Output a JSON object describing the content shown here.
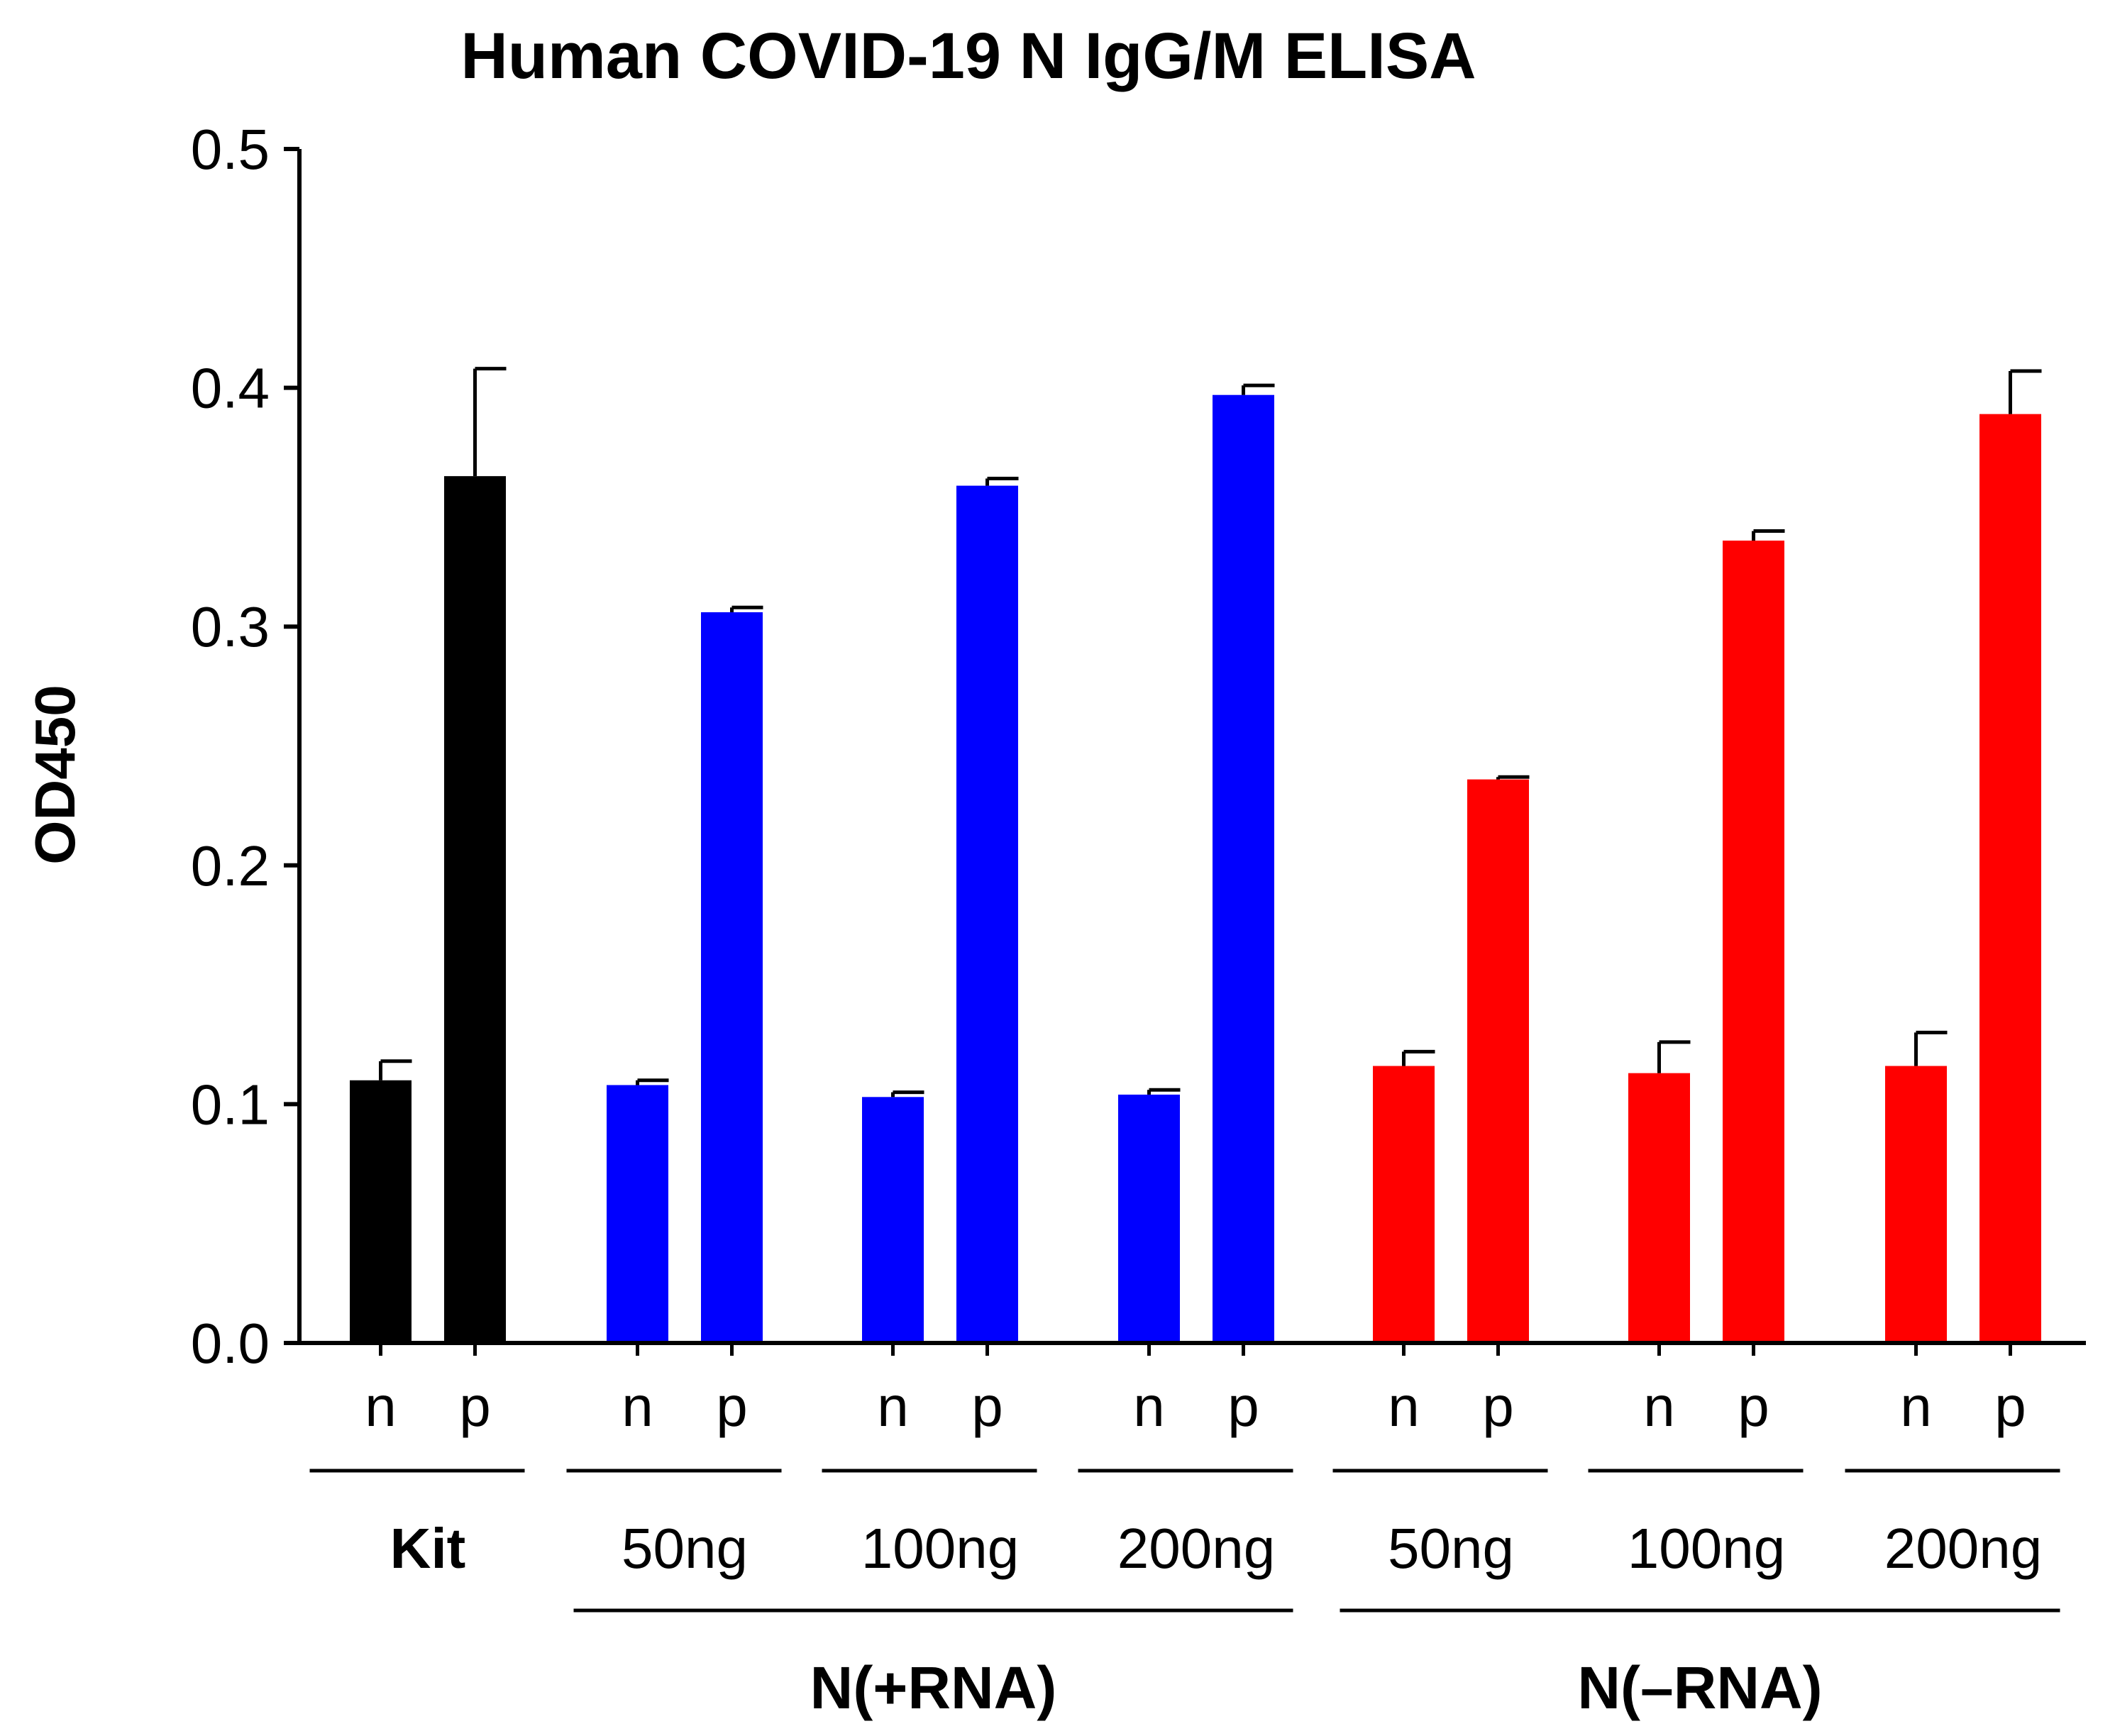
{
  "chart_data": {
    "type": "bar",
    "title": "Human COVID-19 N IgG/M ELISA",
    "ylabel": "OD450",
    "ylim": [
      0,
      0.5
    ],
    "yticks": [
      "0.0",
      "0.1",
      "0.2",
      "0.3",
      "0.4",
      "0.5"
    ],
    "bars": [
      {
        "label": "n",
        "group": "Kit",
        "value": 0.11,
        "error": 0.008,
        "color": "#000000"
      },
      {
        "label": "p",
        "group": "Kit",
        "value": 0.363,
        "error": 0.045,
        "color": "#000000"
      },
      {
        "label": "n",
        "group": "50ng",
        "value": 0.108,
        "error": 0.002,
        "color": "#0000FF"
      },
      {
        "label": "p",
        "group": "50ng",
        "value": 0.306,
        "error": 0.002,
        "color": "#0000FF"
      },
      {
        "label": "n",
        "group": "100ng",
        "value": 0.103,
        "error": 0.002,
        "color": "#0000FF"
      },
      {
        "label": "p",
        "group": "100ng",
        "value": 0.359,
        "error": 0.003,
        "color": "#0000FF"
      },
      {
        "label": "n",
        "group": "200ng",
        "value": 0.104,
        "error": 0.002,
        "color": "#0000FF"
      },
      {
        "label": "p",
        "group": "200ng",
        "value": 0.397,
        "error": 0.004,
        "color": "#0000FF"
      },
      {
        "label": "n",
        "group": "50ng",
        "value": 0.116,
        "error": 0.006,
        "color": "#FF0000"
      },
      {
        "label": "p",
        "group": "50ng",
        "value": 0.236,
        "error": 0.001,
        "color": "#FF0000"
      },
      {
        "label": "n",
        "group": "100ng",
        "value": 0.113,
        "error": 0.013,
        "color": "#FF0000"
      },
      {
        "label": "p",
        "group": "100ng",
        "value": 0.336,
        "error": 0.004,
        "color": "#FF0000"
      },
      {
        "label": "n",
        "group": "200ng",
        "value": 0.116,
        "error": 0.014,
        "color": "#FF0000"
      },
      {
        "label": "p",
        "group": "200ng",
        "value": 0.389,
        "error": 0.018,
        "color": "#FF0000"
      }
    ],
    "groups": [
      {
        "label": "Kit",
        "bold": true
      },
      {
        "label": "50ng",
        "bold": false
      },
      {
        "label": "100ng",
        "bold": false
      },
      {
        "label": "200ng",
        "bold": false
      },
      {
        "label": "50ng",
        "bold": false
      },
      {
        "label": "100ng",
        "bold": false
      },
      {
        "label": "200ng",
        "bold": false
      }
    ],
    "supergroups": [
      {
        "label": "N(+RNA)",
        "groups": [
          1,
          2,
          3
        ]
      },
      {
        "label": "N(–RNA)",
        "groups": [
          4,
          5,
          6
        ]
      }
    ]
  }
}
